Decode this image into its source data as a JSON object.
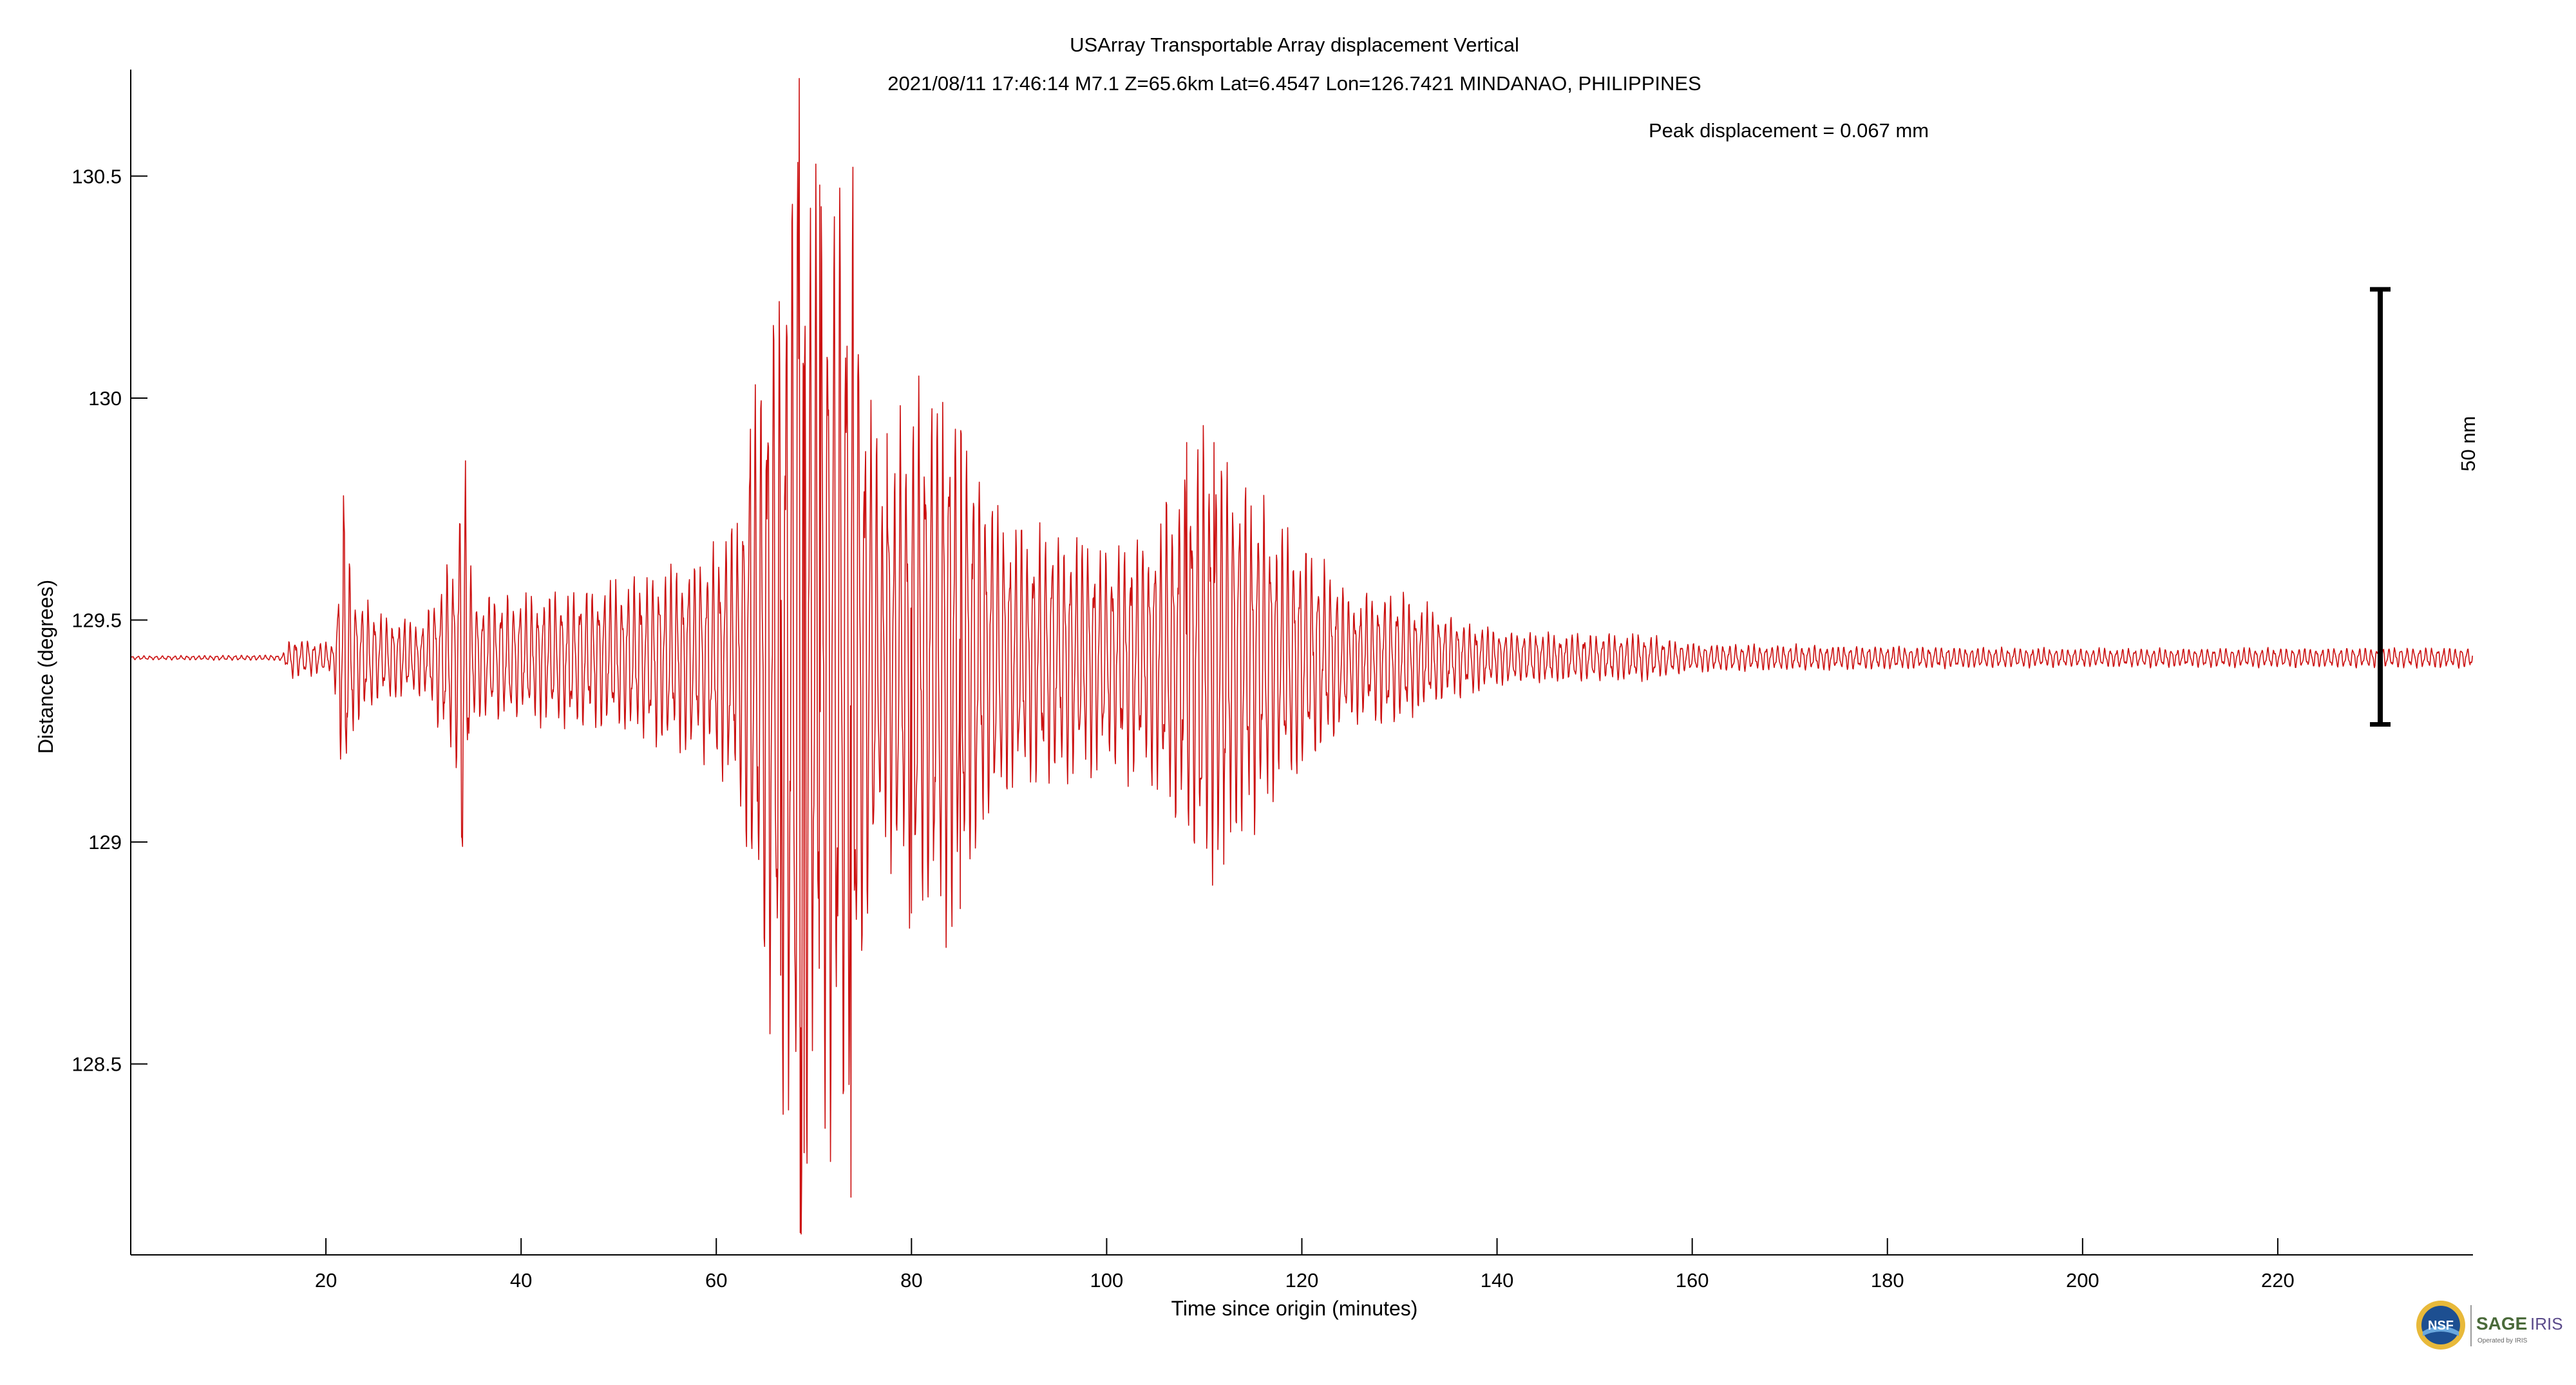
{
  "chart_data": {
    "type": "line",
    "title": "USArray Transportable Array displacement   Vertical",
    "subtitle": "2021/08/11  17:46:14  M7.1  Z=65.6km  Lat=6.4547 Lon=126.7421  MINDANAO, PHILIPPINES",
    "annotation": "Peak displacement = 0.067 mm",
    "xlabel": "Time since origin (minutes)",
    "ylabel": "Distance (degrees)",
    "xlim": [
      0,
      240
    ],
    "ylim": [
      128.07,
      130.74
    ],
    "xticks": [
      20,
      40,
      60,
      80,
      100,
      120,
      140,
      160,
      180,
      200,
      220
    ],
    "yticks": [
      128.5,
      129,
      129.5,
      130,
      130.5
    ],
    "ytick_labels": [
      "128.5",
      "129",
      "129.5",
      "130",
      "130.5"
    ],
    "grid": false,
    "trace_color": "#cc1111",
    "baseline": 129.415,
    "scale_bar": {
      "label": "50 nm",
      "x": 230.5,
      "y_top": 130.245,
      "y_bottom": 129.265
    },
    "series": [
      {
        "envelope": [
          [
            0,
            0.004
          ],
          [
            15.5,
            0.006
          ],
          [
            16.5,
            0.045
          ],
          [
            20.8,
            0.03
          ],
          [
            21.8,
            0.33
          ],
          [
            23,
            0.14
          ],
          [
            26,
            0.09
          ],
          [
            30,
            0.08
          ],
          [
            33.3,
            0.23
          ],
          [
            34,
            0.5
          ],
          [
            35,
            0.14
          ],
          [
            40,
            0.13
          ],
          [
            45,
            0.15
          ],
          [
            50,
            0.16
          ],
          [
            55,
            0.2
          ],
          [
            59,
            0.22
          ],
          [
            62,
            0.3
          ],
          [
            63.5,
            0.5
          ],
          [
            65,
            0.75
          ],
          [
            66.5,
            0.85
          ],
          [
            68.5,
            1.3
          ],
          [
            70,
            1.0
          ],
          [
            72,
            1.05
          ],
          [
            73.5,
            1.1
          ],
          [
            75,
            0.7
          ],
          [
            77,
            0.4
          ],
          [
            80,
            0.55
          ],
          [
            84,
            0.62
          ],
          [
            87,
            0.42
          ],
          [
            90,
            0.28
          ],
          [
            95,
            0.28
          ],
          [
            100,
            0.24
          ],
          [
            105,
            0.28
          ],
          [
            108,
            0.42
          ],
          [
            110,
            0.5
          ],
          [
            113,
            0.42
          ],
          [
            117,
            0.3
          ],
          [
            120,
            0.25
          ],
          [
            125,
            0.14
          ],
          [
            130,
            0.14
          ],
          [
            135,
            0.09
          ],
          [
            140,
            0.06
          ],
          [
            150,
            0.05
          ],
          [
            155,
            0.05
          ],
          [
            160,
            0.03
          ],
          [
            200,
            0.02
          ],
          [
            240,
            0.022
          ]
        ],
        "peaks": [
          [
            21.8,
            129.78
          ],
          [
            22.1,
            129.2
          ],
          [
            34.0,
            128.99
          ],
          [
            63.5,
            129.93
          ],
          [
            66.6,
            128.7
          ],
          [
            68.5,
            130.72
          ],
          [
            68.6,
            128.12
          ],
          [
            69.0,
            128.3
          ],
          [
            70.6,
            130.48
          ],
          [
            73.8,
            128.2
          ],
          [
            74.0,
            130.52
          ],
          [
            77.5,
            129.92
          ],
          [
            80.0,
            128.84
          ],
          [
            84.5,
            129.93
          ],
          [
            85.0,
            128.85
          ],
          [
            108.2,
            129.9
          ],
          [
            111.0,
            129.9
          ],
          [
            112.0,
            128.95
          ]
        ]
      }
    ]
  },
  "logo": {
    "nsf": "NSF",
    "sage": "SAGE",
    "iris": "IRIS",
    "operated_by": "Operated by IRIS"
  }
}
